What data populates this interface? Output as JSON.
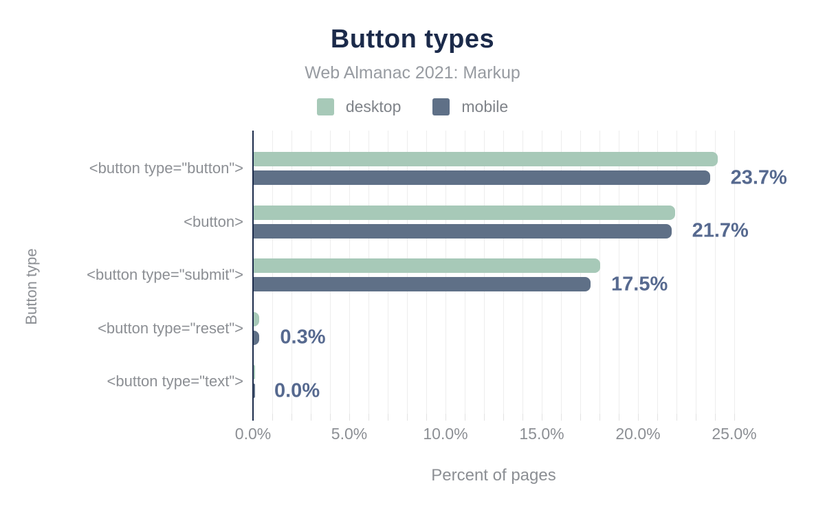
{
  "chart": {
    "title": "Button types",
    "subtitle": "Web Almanac 2021: Markup",
    "xlabel": "Percent of pages",
    "ylabel": "Button type",
    "colors": {
      "title": "#1b2a4a",
      "axis_line": "#1b2a4a",
      "desktop": "#a7c9b8",
      "mobile": "#5f7087",
      "value_label": "#56698f",
      "gridline": "#ededed",
      "muted_text": "#8c8f94"
    }
  },
  "chart_data": {
    "type": "bar",
    "orientation": "horizontal",
    "title": "Button types",
    "subtitle": "Web Almanac 2021: Markup",
    "xlabel": "Percent of pages",
    "ylabel": "Button type",
    "legend_position": "top",
    "grid": "vertical minor lines every 1%",
    "xlim": [
      0,
      25.5
    ],
    "x_ticks": [
      "0.0%",
      "5.0%",
      "10.0%",
      "15.0%",
      "20.0%",
      "25.0%"
    ],
    "x_tick_values": [
      0,
      5,
      10,
      15,
      20,
      25
    ],
    "categories": [
      "<button type=\"button\">",
      "<button>",
      "<button type=\"submit\">",
      "<button type=\"reset\">",
      "<button type=\"text\">"
    ],
    "series": [
      {
        "name": "desktop",
        "color": "#a7c9b8",
        "values": [
          24.1,
          21.9,
          18.0,
          0.3,
          0.0
        ]
      },
      {
        "name": "mobile",
        "color": "#5f7087",
        "values": [
          23.7,
          21.7,
          17.5,
          0.3,
          0.0
        ]
      }
    ],
    "value_labels": [
      "23.7%",
      "21.7%",
      "17.5%",
      "0.3%",
      "0.0%"
    ]
  }
}
